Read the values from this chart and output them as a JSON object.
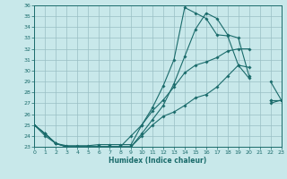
{
  "xlabel": "Humidex (Indice chaleur)",
  "bg_color": "#c8e8ea",
  "grid_color": "#9abfc4",
  "line_color": "#1a6b6b",
  "xlim": [
    0,
    23
  ],
  "ylim": [
    23,
    36
  ],
  "xticks": [
    0,
    1,
    2,
    3,
    4,
    5,
    6,
    7,
    8,
    9,
    10,
    11,
    12,
    13,
    14,
    15,
    16,
    17,
    18,
    19,
    20,
    21,
    22,
    23
  ],
  "yticks": [
    23,
    24,
    25,
    26,
    27,
    28,
    29,
    30,
    31,
    32,
    33,
    34,
    35,
    36
  ],
  "series": [
    {
      "x": [
        0,
        1,
        2,
        3,
        4,
        5,
        6,
        7,
        8,
        9,
        10,
        11,
        12,
        13,
        14,
        15,
        16,
        17,
        18,
        19,
        20,
        21,
        22,
        23
      ],
      "y": [
        25.0,
        24.2,
        23.3,
        23.1,
        23.1,
        23.1,
        23.2,
        23.2,
        23.2,
        23.2,
        25.0,
        26.6,
        28.6,
        31.0,
        35.8,
        35.3,
        34.8,
        33.3,
        33.2,
        30.5,
        29.3,
        null,
        27.0,
        27.3
      ]
    },
    {
      "x": [
        0,
        1,
        2,
        3,
        4,
        5,
        6,
        7,
        8,
        9,
        10,
        11,
        12,
        13,
        14,
        15,
        16,
        17,
        18,
        19,
        20,
        21,
        22,
        23
      ],
      "y": [
        25.0,
        24.2,
        23.3,
        23.0,
        23.0,
        23.0,
        23.0,
        23.0,
        23.0,
        23.0,
        24.2,
        25.5,
        26.8,
        28.8,
        31.3,
        33.8,
        35.3,
        34.8,
        33.3,
        33.0,
        29.5,
        null,
        29.0,
        27.3
      ]
    },
    {
      "x": [
        0,
        1,
        2,
        3,
        4,
        5,
        6,
        7,
        8,
        9,
        10,
        11,
        12,
        13,
        14,
        15,
        16,
        17,
        18,
        19,
        20,
        21,
        22,
        23
      ],
      "y": [
        25.0,
        24.2,
        23.3,
        23.0,
        23.0,
        23.0,
        23.0,
        23.0,
        23.0,
        24.0,
        25.0,
        26.3,
        27.3,
        28.5,
        29.8,
        30.5,
        30.8,
        31.2,
        31.8,
        32.0,
        32.0,
        null,
        27.3,
        27.3
      ]
    },
    {
      "x": [
        0,
        1,
        2,
        3,
        4,
        5,
        6,
        7,
        8,
        9,
        10,
        11,
        12,
        13,
        14,
        15,
        16,
        17,
        18,
        19,
        20,
        21,
        22,
        23
      ],
      "y": [
        25.0,
        24.0,
        23.3,
        23.0,
        23.0,
        23.0,
        23.0,
        23.0,
        23.0,
        23.0,
        24.0,
        25.0,
        25.8,
        26.2,
        26.8,
        27.5,
        27.8,
        28.5,
        29.5,
        30.5,
        30.3,
        null,
        27.3,
        27.3
      ]
    }
  ]
}
